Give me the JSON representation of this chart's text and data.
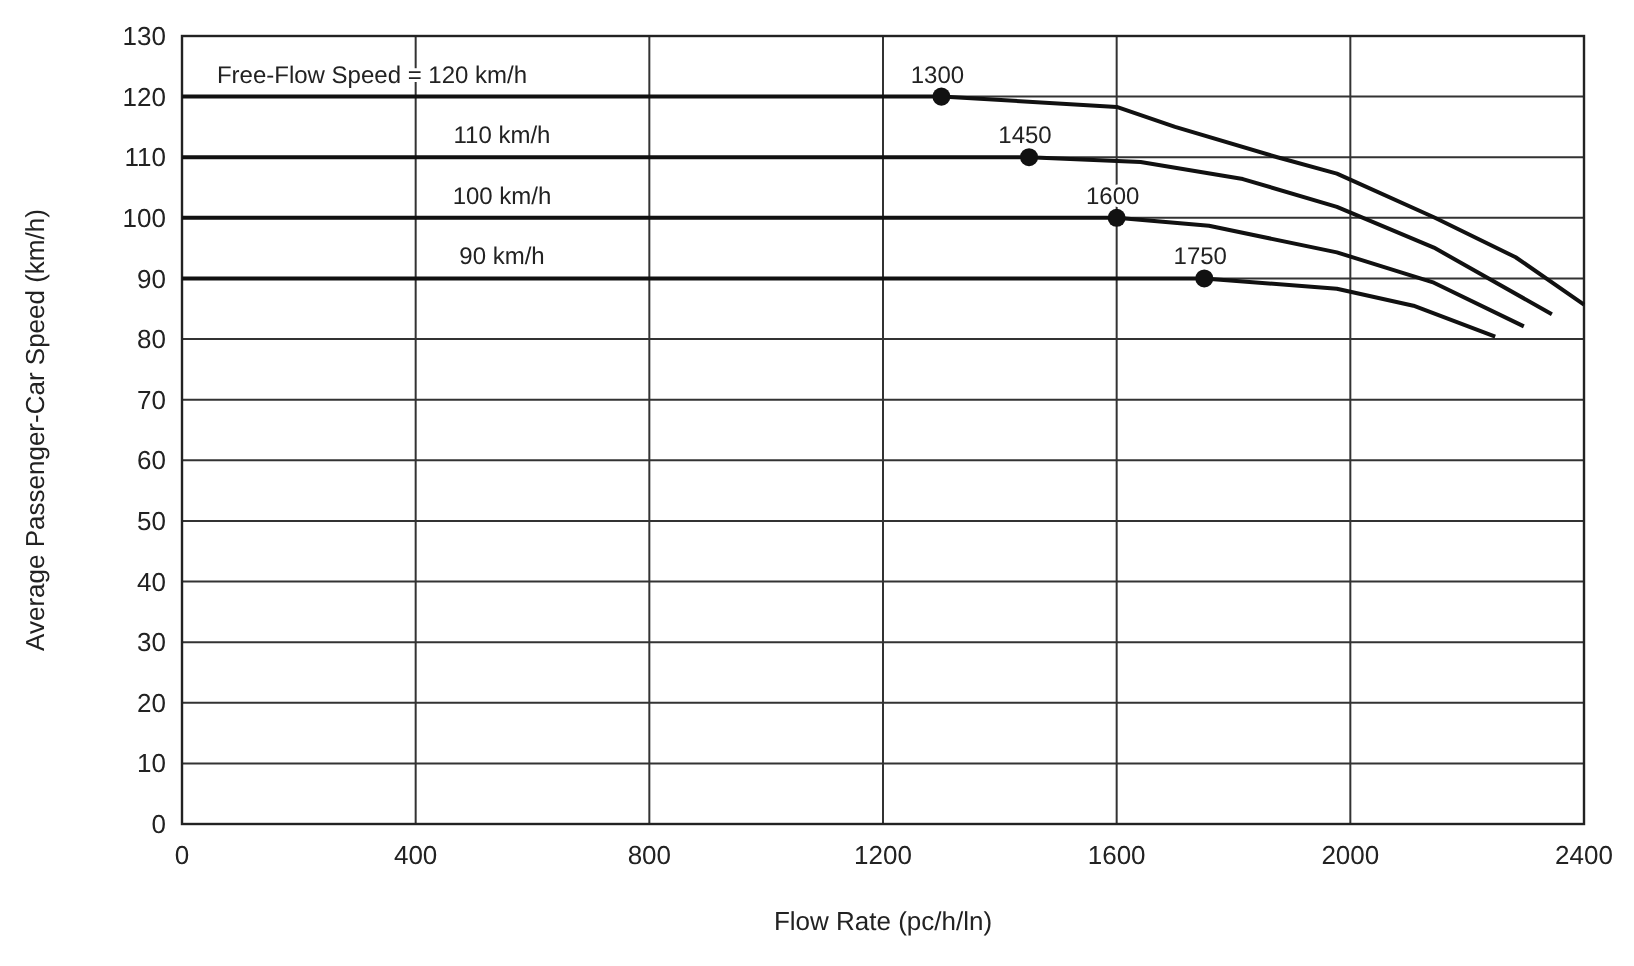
{
  "chart_data": {
    "type": "line",
    "xlabel": "Flow Rate (pc/h/ln)",
    "ylabel": "Average Passenger-Car Speed (km/h)",
    "xlim": [
      0,
      2400
    ],
    "xticks": [
      0,
      400,
      800,
      1200,
      1600,
      2000,
      2400
    ],
    "ylim": [
      0,
      130
    ],
    "yticks": [
      0,
      10,
      20,
      30,
      40,
      50,
      60,
      70,
      80,
      90,
      100,
      110,
      120,
      130
    ],
    "grid": true,
    "line_style": "solid",
    "marker": "none",
    "series": [
      {
        "name": "Free-Flow Speed = 120 km/h",
        "color": "#111111",
        "x": [
          0,
          1300,
          1600,
          1700,
          1875,
          1977,
          2143,
          2283,
          2400
        ],
        "values": [
          120,
          120,
          118.3,
          115,
          110,
          107.3,
          100.1,
          93.5,
          85.7
        ]
      },
      {
        "name": "110 km/h",
        "color": "#111111",
        "x": [
          0,
          1450,
          1641,
          1816,
          1977,
          2143,
          2345
        ],
        "values": [
          110,
          110,
          109.2,
          106.4,
          101.8,
          95.1,
          84.1
        ]
      },
      {
        "name": "100 km/h",
        "color": "#111111",
        "x": [
          0,
          1600,
          1758,
          1977,
          2143,
          2297
        ],
        "values": [
          100,
          100,
          98.7,
          94.3,
          89.3,
          82.1
        ]
      },
      {
        "name": "90 km/h",
        "color": "#111111",
        "x": [
          0,
          1750,
          1977,
          2108,
          2248
        ],
        "values": [
          90,
          90,
          88.3,
          85.5,
          80.4
        ]
      },
      {
        "type": "scatter",
        "marker": "circle",
        "color": "#111111",
        "x": [
          1300,
          1450,
          1600,
          1750
        ],
        "values": [
          120,
          110,
          100,
          90
        ]
      }
    ],
    "annotations": [
      {
        "text": "1300",
        "x": 1300,
        "y": 120
      },
      {
        "text": "1450",
        "x": 1450,
        "y": 110
      },
      {
        "text": "1600",
        "x": 1600,
        "y": 100
      },
      {
        "text": "1750",
        "x": 1750,
        "y": 90
      }
    ]
  }
}
